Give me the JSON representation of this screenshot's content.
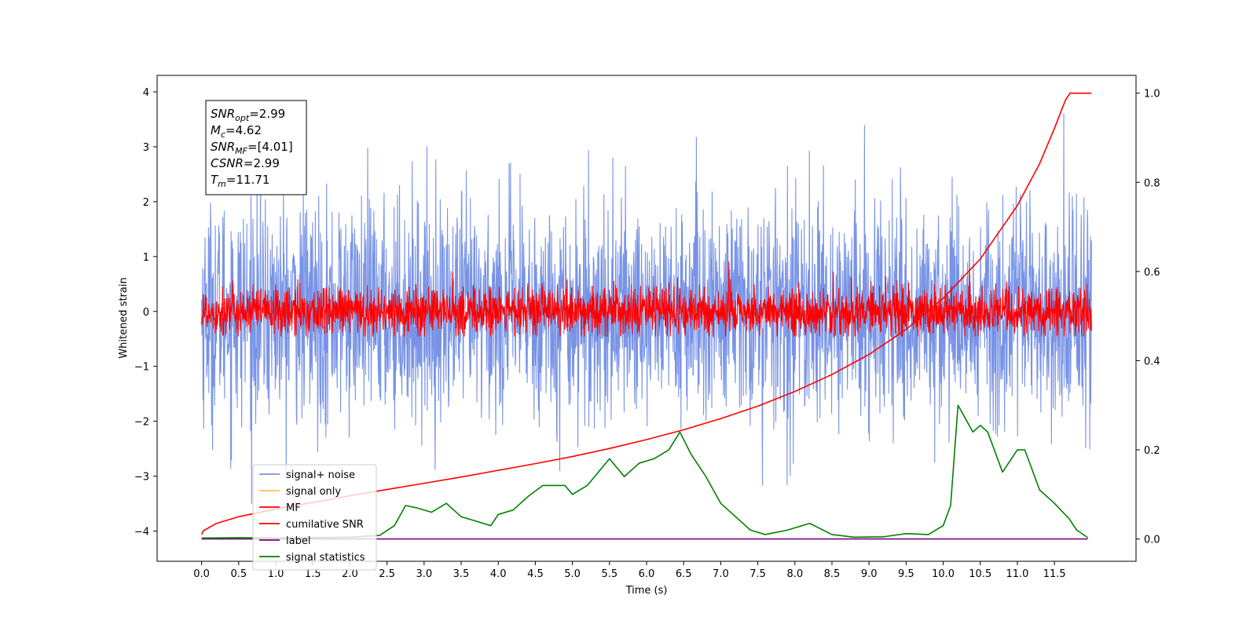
{
  "chart_data": {
    "type": "line",
    "xlabel": "Time (s)",
    "ylabel": "Whitened strain",
    "xlim": [
      -0.6,
      12.6
    ],
    "ylim": [
      -4.55,
      4.3
    ],
    "ylim_right": [
      -0.05,
      1.04
    ],
    "x_ticks": [
      "0.0",
      "0.5",
      "1.0",
      "1.5",
      "2.0",
      "2.5",
      "3.0",
      "3.5",
      "4.0",
      "4.5",
      "5.0",
      "5.5",
      "6.0",
      "6.5",
      "7.0",
      "7.5",
      "8.0",
      "8.5",
      "9.0",
      "9.5",
      "10.0",
      "10.5",
      "11.0",
      "11.5"
    ],
    "x_tick_values": [
      0,
      0.5,
      1,
      1.5,
      2,
      2.5,
      3,
      3.5,
      4,
      4.5,
      5,
      5.5,
      6,
      6.5,
      7,
      7.5,
      8,
      8.5,
      9,
      9.5,
      10,
      10.5,
      11,
      11.5
    ],
    "y_ticks": [
      "−4",
      "−3",
      "−2",
      "−1",
      "0",
      "1",
      "2",
      "3",
      "4"
    ],
    "y_tick_values": [
      -4,
      -3,
      -2,
      -1,
      0,
      1,
      2,
      3,
      4
    ],
    "y_right_ticks": [
      "0.0",
      "0.2",
      "0.4",
      "0.6",
      "0.8",
      "1.0"
    ],
    "y_right_tick_values": [
      0,
      0.2,
      0.4,
      0.6,
      0.8,
      1.0
    ],
    "grid": false,
    "legend_position": "lower-left",
    "annotation": [
      {
        "main": "SNR",
        "sub": "opt",
        "rest": "=2.99"
      },
      {
        "main": "M",
        "sub": "c",
        "rest": "=4.62"
      },
      {
        "main": "SNR",
        "sub": "MF",
        "rest": "=[4.01]"
      },
      {
        "main": "CSNR",
        "sub": "",
        "rest": "=2.99"
      },
      {
        "main": "T",
        "sub": "m",
        "rest": "=11.71"
      }
    ],
    "series": [
      {
        "name": "signal+ noise",
        "axis": "left",
        "color": "#7893e6",
        "kind": "noise",
        "x_range": [
          0,
          12
        ],
        "approx_std": 1.0,
        "approx_max": 3.9,
        "approx_min": -4.15
      },
      {
        "name": "signal only",
        "axis": "left",
        "color": "#ffc04d",
        "kind": "hidden"
      },
      {
        "name": "MF",
        "axis": "left",
        "color": "#ff0000",
        "kind": "noise",
        "x_range": [
          0,
          12
        ],
        "approx_std": 0.22,
        "approx_max": 1.0,
        "approx_min": -0.45
      },
      {
        "name": "cumilative SNR",
        "axis": "right",
        "color": "#ff0000",
        "kind": "line",
        "x": [
          0,
          0.02,
          0.2,
          0.5,
          1.0,
          1.5,
          2.0,
          2.5,
          3.0,
          3.5,
          4.0,
          4.5,
          5.0,
          5.5,
          6.0,
          6.5,
          7.0,
          7.5,
          8.0,
          8.5,
          9.0,
          9.5,
          10.0,
          10.5,
          11.0,
          11.3,
          11.5,
          11.6,
          11.65,
          11.71,
          12.0
        ],
        "y": [
          0.01,
          0.018,
          0.035,
          0.05,
          0.067,
          0.082,
          0.097,
          0.111,
          0.125,
          0.139,
          0.154,
          0.169,
          0.185,
          0.203,
          0.223,
          0.245,
          0.27,
          0.298,
          0.331,
          0.369,
          0.414,
          0.47,
          0.54,
          0.628,
          0.748,
          0.842,
          0.921,
          0.964,
          0.985,
          1.0,
          1.0
        ]
      },
      {
        "name": "label",
        "axis": "right",
        "color": "#800080",
        "kind": "line",
        "x": [
          0,
          11.95
        ],
        "y": [
          0,
          0
        ]
      },
      {
        "name": "signal statistics",
        "axis": "right",
        "color": "#008000",
        "kind": "line",
        "x": [
          0,
          0.5,
          1.0,
          1.5,
          2.0,
          2.4,
          2.6,
          2.75,
          2.9,
          3.1,
          3.3,
          3.5,
          3.7,
          3.9,
          4.0,
          4.2,
          4.4,
          4.6,
          4.9,
          5.0,
          5.2,
          5.5,
          5.7,
          5.9,
          6.1,
          6.3,
          6.45,
          6.6,
          6.8,
          7.0,
          7.2,
          7.4,
          7.6,
          7.9,
          8.2,
          8.5,
          8.8,
          9.2,
          9.5,
          9.8,
          10.0,
          10.1,
          10.2,
          10.3,
          10.4,
          10.5,
          10.6,
          10.8,
          11.0,
          11.1,
          11.3,
          11.5,
          11.7,
          11.8,
          11.95
        ],
        "y": [
          0.002,
          0.003,
          0.002,
          0.003,
          0.004,
          0.008,
          0.03,
          0.075,
          0.07,
          0.06,
          0.08,
          0.05,
          0.04,
          0.03,
          0.055,
          0.065,
          0.095,
          0.12,
          0.12,
          0.1,
          0.12,
          0.18,
          0.14,
          0.17,
          0.18,
          0.2,
          0.24,
          0.19,
          0.14,
          0.08,
          0.05,
          0.02,
          0.01,
          0.02,
          0.035,
          0.01,
          0.004,
          0.005,
          0.012,
          0.01,
          0.03,
          0.075,
          0.3,
          0.27,
          0.24,
          0.255,
          0.24,
          0.15,
          0.2,
          0.2,
          0.11,
          0.08,
          0.045,
          0.02,
          0.003
        ]
      }
    ]
  }
}
